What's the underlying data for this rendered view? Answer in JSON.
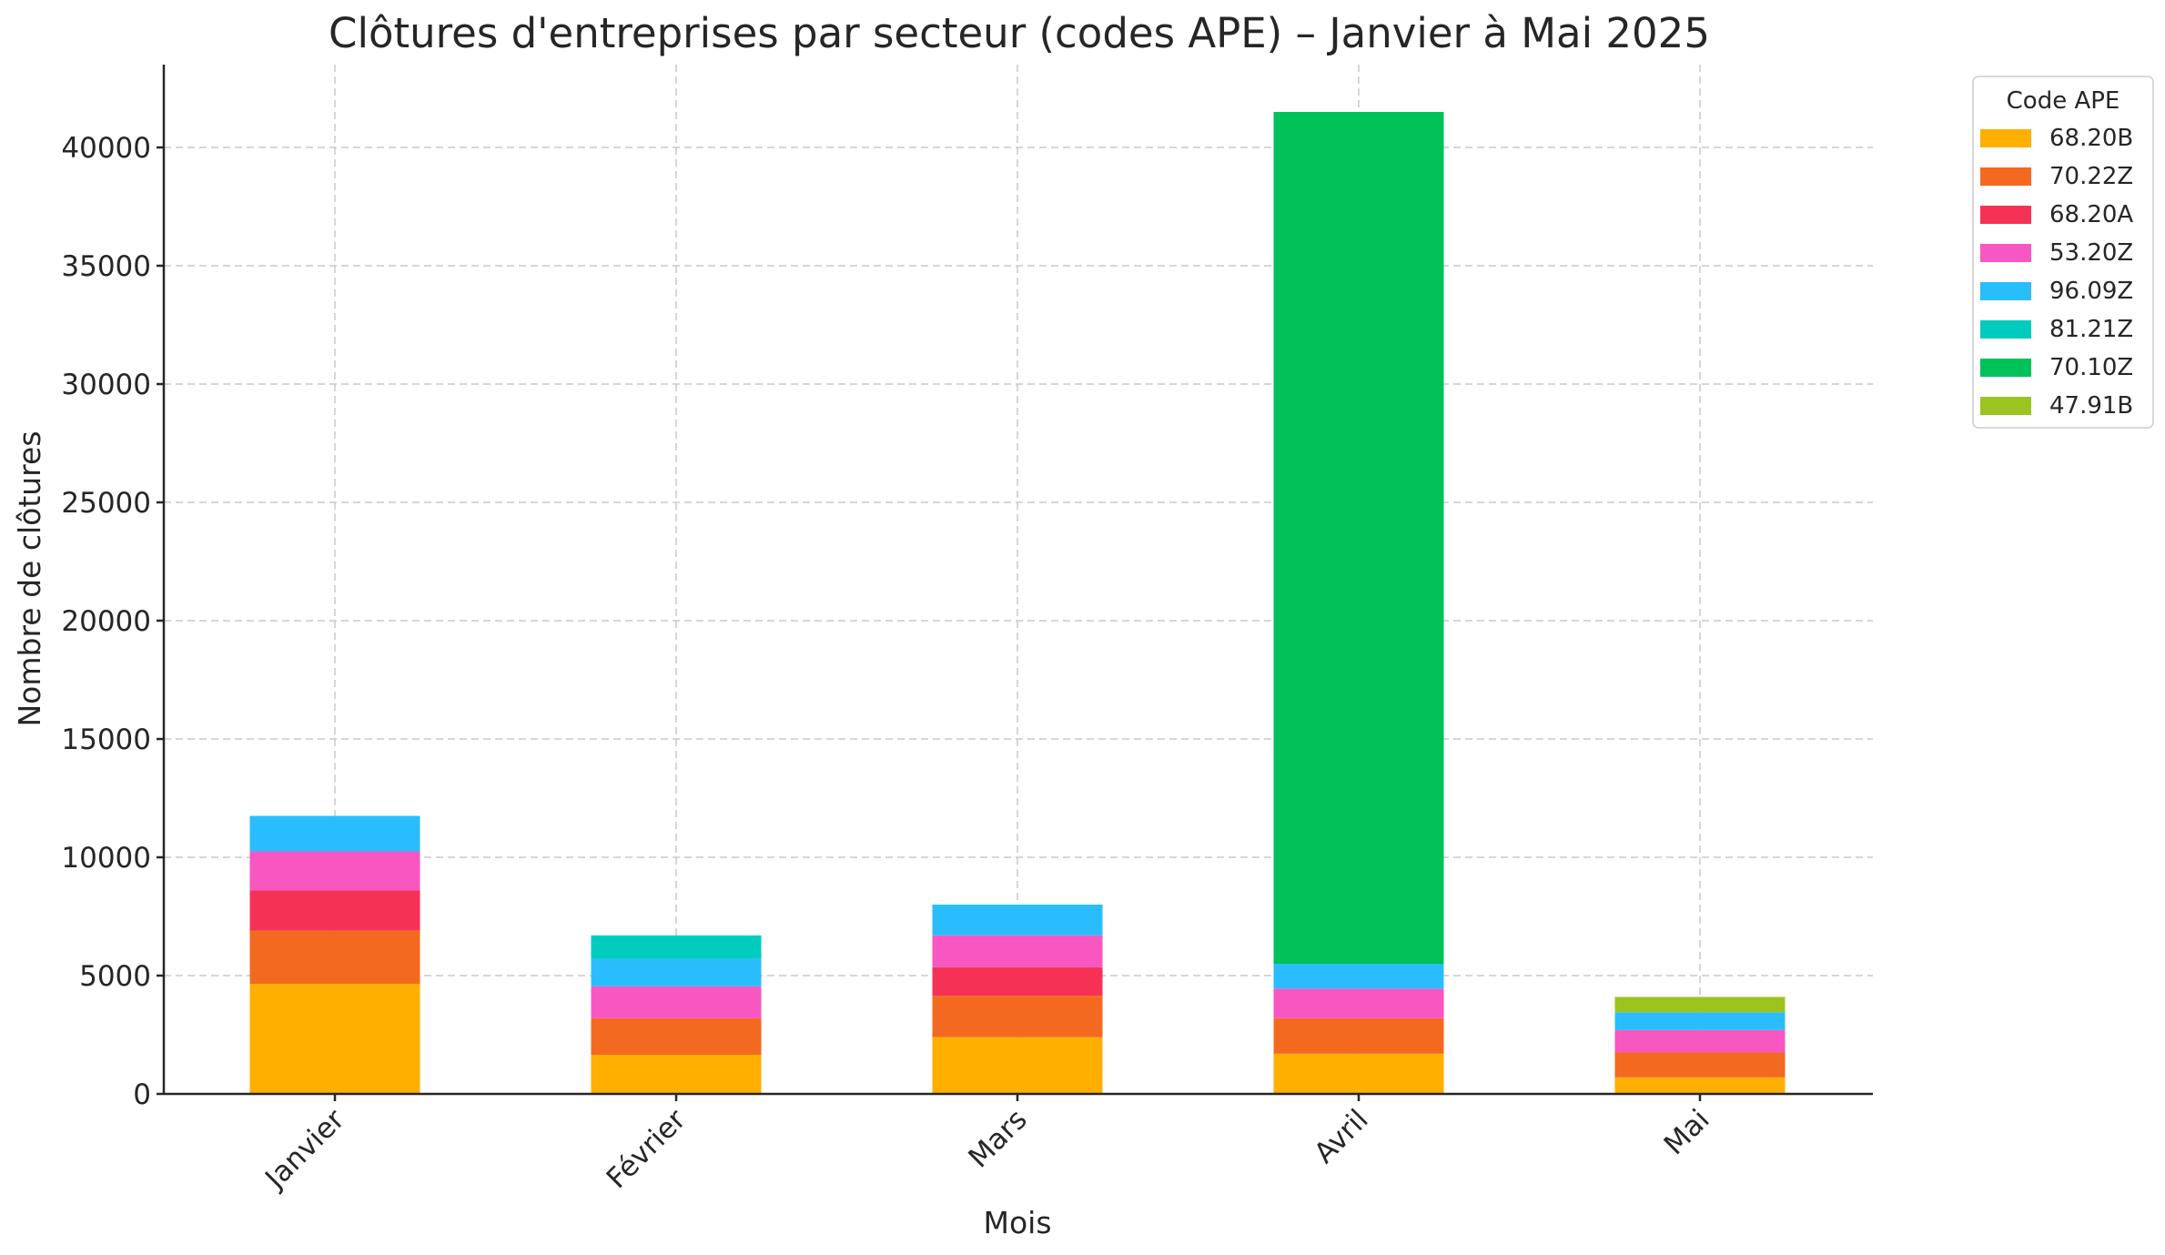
{
  "chart_data": {
    "type": "bar",
    "stacked": true,
    "title": "Clôtures d'entreprises par secteur (codes APE) – Janvier à Mai 2025",
    "xlabel": "Mois",
    "ylabel": "Nombre de clôtures",
    "categories": [
      "Janvier",
      "Février",
      "Mars",
      "Avril",
      "Mai"
    ],
    "ylim": [
      0,
      43500
    ],
    "yticks": [
      0,
      5000,
      10000,
      15000,
      20000,
      25000,
      30000,
      35000,
      40000
    ],
    "grid": true,
    "legend": {
      "title": "Code APE",
      "position": "outside-top-right"
    },
    "series": [
      {
        "name": "68.20B",
        "color": "#FFAF00",
        "values": [
          4650,
          1650,
          2400,
          1700,
          700
        ]
      },
      {
        "name": "70.22Z",
        "color": "#F46920",
        "values": [
          2250,
          1550,
          1750,
          1500,
          1050
        ]
      },
      {
        "name": "68.20A",
        "color": "#F53255",
        "values": [
          1700,
          0,
          1200,
          0,
          0
        ]
      },
      {
        "name": "53.20Z",
        "color": "#F857C1",
        "values": [
          1650,
          1350,
          1350,
          1250,
          950
        ]
      },
      {
        "name": "96.09Z",
        "color": "#29BDFD",
        "values": [
          1500,
          1150,
          1300,
          1050,
          750
        ]
      },
      {
        "name": "81.21Z",
        "color": "#00CBBF",
        "values": [
          0,
          1000,
          0,
          0,
          0
        ]
      },
      {
        "name": "70.10Z",
        "color": "#01C159",
        "values": [
          0,
          0,
          0,
          36000,
          0
        ]
      },
      {
        "name": "47.91B",
        "color": "#9BC41F",
        "values": [
          0,
          0,
          0,
          0,
          650
        ]
      }
    ]
  }
}
